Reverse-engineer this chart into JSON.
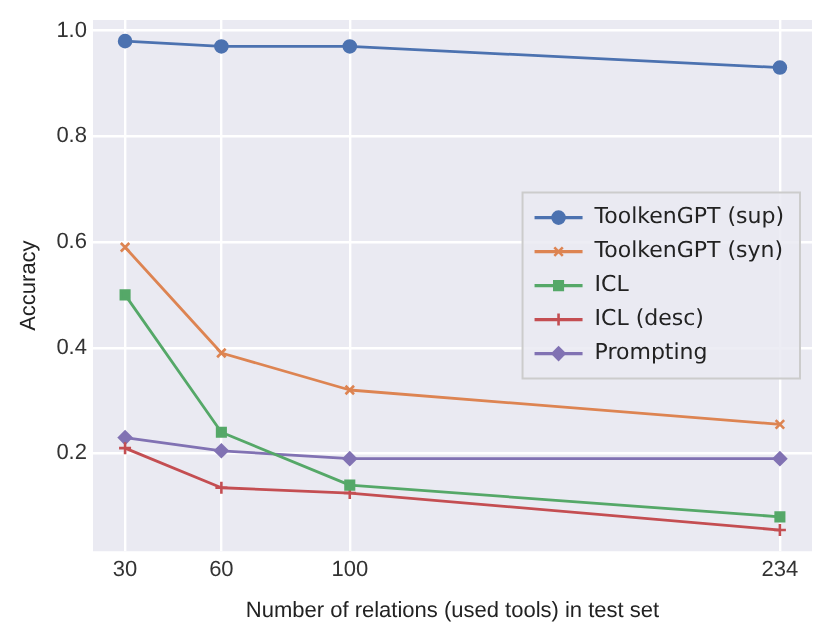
{
  "chart_data": {
    "type": "line",
    "xlabel": "Number of relations (used tools) in test set",
    "ylabel": "Accuracy",
    "xlim": [
      20,
      244
    ],
    "xticks": [
      30,
      60,
      100,
      234
    ],
    "ylim": [
      0.015,
      1.02
    ],
    "yticks": [
      {
        "value": 0.2,
        "label": "0.2"
      },
      {
        "value": 0.4,
        "label": "0.4"
      },
      {
        "value": 0.6,
        "label": "0.6"
      },
      {
        "value": 0.8,
        "label": "0.8"
      },
      {
        "value": 1,
        "label": "1.0"
      }
    ],
    "grid": true,
    "legend": "right",
    "line_style": "solid",
    "series": [
      {
        "name": "ToolkenGPT (sup)",
        "color": "#4c72b0",
        "marker": "circle",
        "x": [
          30,
          60,
          100,
          234
        ],
        "values": [
          0.98,
          0.97,
          0.97,
          0.93
        ]
      },
      {
        "name": "ToolkenGPT (syn)",
        "color": "#dd8452",
        "marker": "cross",
        "x": [
          30,
          60,
          100,
          234
        ],
        "values": [
          0.59,
          0.39,
          0.32,
          0.255
        ]
      },
      {
        "name": "ICL",
        "color": "#55a868",
        "marker": "square",
        "x": [
          30,
          60,
          100,
          234
        ],
        "values": [
          0.5,
          0.24,
          0.14,
          0.08
        ]
      },
      {
        "name": "ICL (desc)",
        "color": "#c44e52",
        "marker": "plus",
        "x": [
          30,
          60,
          100,
          234
        ],
        "values": [
          0.21,
          0.135,
          0.125,
          0.055
        ]
      },
      {
        "name": "Prompting",
        "color": "#8172b3",
        "marker": "diamond",
        "x": [
          30,
          60,
          100,
          234
        ],
        "values": [
          0.23,
          0.205,
          0.19,
          0.19
        ]
      }
    ]
  }
}
